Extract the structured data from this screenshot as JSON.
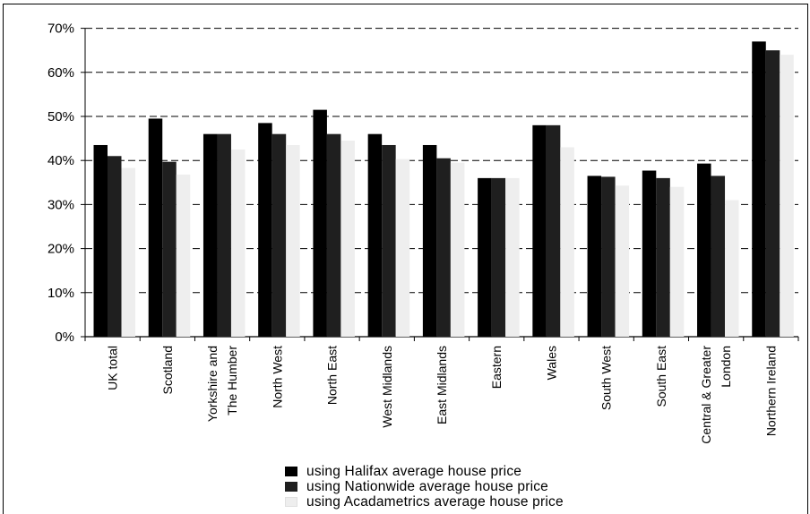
{
  "chart_data": {
    "type": "bar",
    "title": "",
    "xlabel": "",
    "ylabel": "",
    "ylim": [
      0,
      70
    ],
    "grid": "dashed-horizontal",
    "legend_placement": "bottom",
    "y_ticks": [
      "0%",
      "10%",
      "20%",
      "30%",
      "40%",
      "50%",
      "60%",
      "70%"
    ],
    "categories": [
      [
        "UK total"
      ],
      [
        "Scotland"
      ],
      [
        "Yorkshire and",
        "The Humber"
      ],
      [
        "North West"
      ],
      [
        "North East"
      ],
      [
        "West Midlands"
      ],
      [
        "East Midlands"
      ],
      [
        "Eastern"
      ],
      [
        "Wales"
      ],
      [
        "South West"
      ],
      [
        "South East"
      ],
      [
        "Central & Greater",
        "London"
      ],
      [
        "Northern Ireland"
      ]
    ],
    "series": [
      {
        "name": "using Halifax average house price",
        "color": "#000000",
        "values": [
          43.5,
          49.5,
          46,
          48.5,
          51.5,
          46,
          43.5,
          36,
          48,
          36.5,
          37.7,
          39.3,
          67
        ]
      },
      {
        "name": "using Nationwide average house price",
        "color": "#1f1f1f",
        "values": [
          41,
          39.7,
          46,
          46,
          46,
          43.5,
          40.5,
          36,
          48,
          36.3,
          36,
          36.5,
          65
        ]
      },
      {
        "name": "using Acadametrics average house price",
        "color": "#eeeeee",
        "values": [
          38.3,
          36.8,
          42.5,
          43.5,
          44.5,
          40.3,
          39.5,
          36,
          43,
          34.3,
          34,
          31,
          64
        ]
      }
    ]
  }
}
